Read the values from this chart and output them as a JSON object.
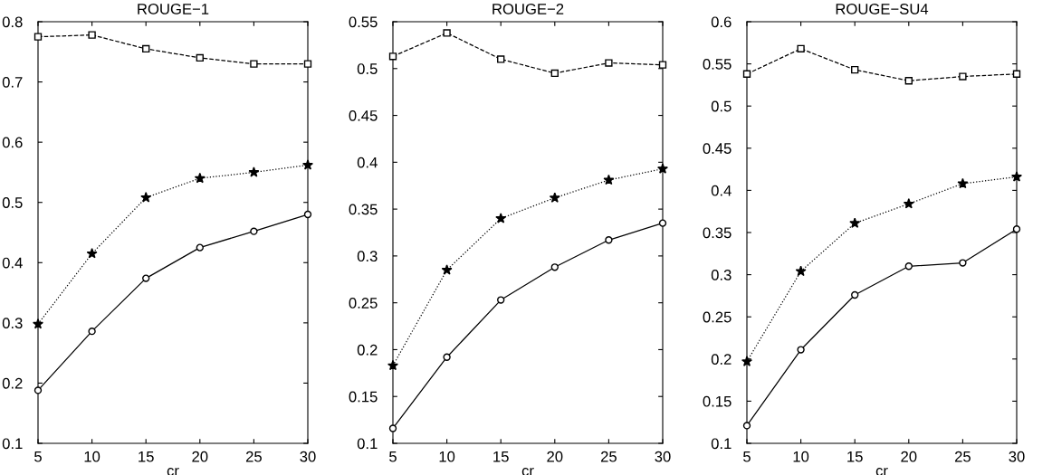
{
  "chart_data": [
    {
      "type": "line",
      "title": "ROUGE−1",
      "xlabel": "cr",
      "x": [
        5,
        10,
        15,
        20,
        25,
        30
      ],
      "xlim": [
        5,
        30
      ],
      "xticks": [
        5,
        10,
        15,
        20,
        25,
        30
      ],
      "ylim": [
        0.1,
        0.8
      ],
      "yticks": [
        0.1,
        0.2,
        0.3,
        0.4,
        0.5,
        0.6,
        0.7,
        0.8
      ],
      "grid": false,
      "legend": false,
      "series": [
        {
          "color": "#000000",
          "marker": "square",
          "line_style": "dashed",
          "values": [
            0.775,
            0.778,
            0.755,
            0.74,
            0.73,
            0.73
          ]
        },
        {
          "color": "#000000",
          "marker": "star",
          "line_style": "dotted",
          "values": [
            0.298,
            0.415,
            0.508,
            0.54,
            0.55,
            0.562
          ]
        },
        {
          "color": "#000000",
          "marker": "circle",
          "line_style": "solid",
          "values": [
            0.188,
            0.286,
            0.374,
            0.425,
            0.452,
            0.48
          ]
        }
      ]
    },
    {
      "type": "line",
      "title": "ROUGE−2",
      "xlabel": "cr",
      "x": [
        5,
        10,
        15,
        20,
        25,
        30
      ],
      "xlim": [
        5,
        30
      ],
      "xticks": [
        5,
        10,
        15,
        20,
        25,
        30
      ],
      "ylim": [
        0.1,
        0.55
      ],
      "yticks": [
        0.1,
        0.15,
        0.2,
        0.25,
        0.3,
        0.35,
        0.4,
        0.45,
        0.5,
        0.55
      ],
      "grid": false,
      "legend": false,
      "series": [
        {
          "color": "#000000",
          "marker": "square",
          "line_style": "dashed",
          "values": [
            0.513,
            0.538,
            0.51,
            0.495,
            0.506,
            0.504
          ]
        },
        {
          "color": "#000000",
          "marker": "star",
          "line_style": "dotted",
          "values": [
            0.183,
            0.285,
            0.34,
            0.362,
            0.381,
            0.393
          ]
        },
        {
          "color": "#000000",
          "marker": "circle",
          "line_style": "solid",
          "values": [
            0.116,
            0.192,
            0.253,
            0.288,
            0.317,
            0.335
          ]
        }
      ]
    },
    {
      "type": "line",
      "title": "ROUGE−SU4",
      "xlabel": "cr",
      "x": [
        5,
        10,
        15,
        20,
        25,
        30
      ],
      "xlim": [
        5,
        30
      ],
      "xticks": [
        5,
        10,
        15,
        20,
        25,
        30
      ],
      "ylim": [
        0.1,
        0.6
      ],
      "yticks": [
        0.1,
        0.15,
        0.2,
        0.25,
        0.3,
        0.35,
        0.4,
        0.45,
        0.5,
        0.55,
        0.6
      ],
      "grid": false,
      "legend": false,
      "series": [
        {
          "color": "#000000",
          "marker": "square",
          "line_style": "dashed",
          "values": [
            0.538,
            0.568,
            0.543,
            0.53,
            0.535,
            0.538
          ]
        },
        {
          "color": "#000000",
          "marker": "star",
          "line_style": "dotted",
          "values": [
            0.197,
            0.304,
            0.361,
            0.384,
            0.408,
            0.416
          ]
        },
        {
          "color": "#000000",
          "marker": "circle",
          "line_style": "solid",
          "values": [
            0.121,
            0.211,
            0.276,
            0.31,
            0.314,
            0.354
          ]
        }
      ]
    }
  ]
}
